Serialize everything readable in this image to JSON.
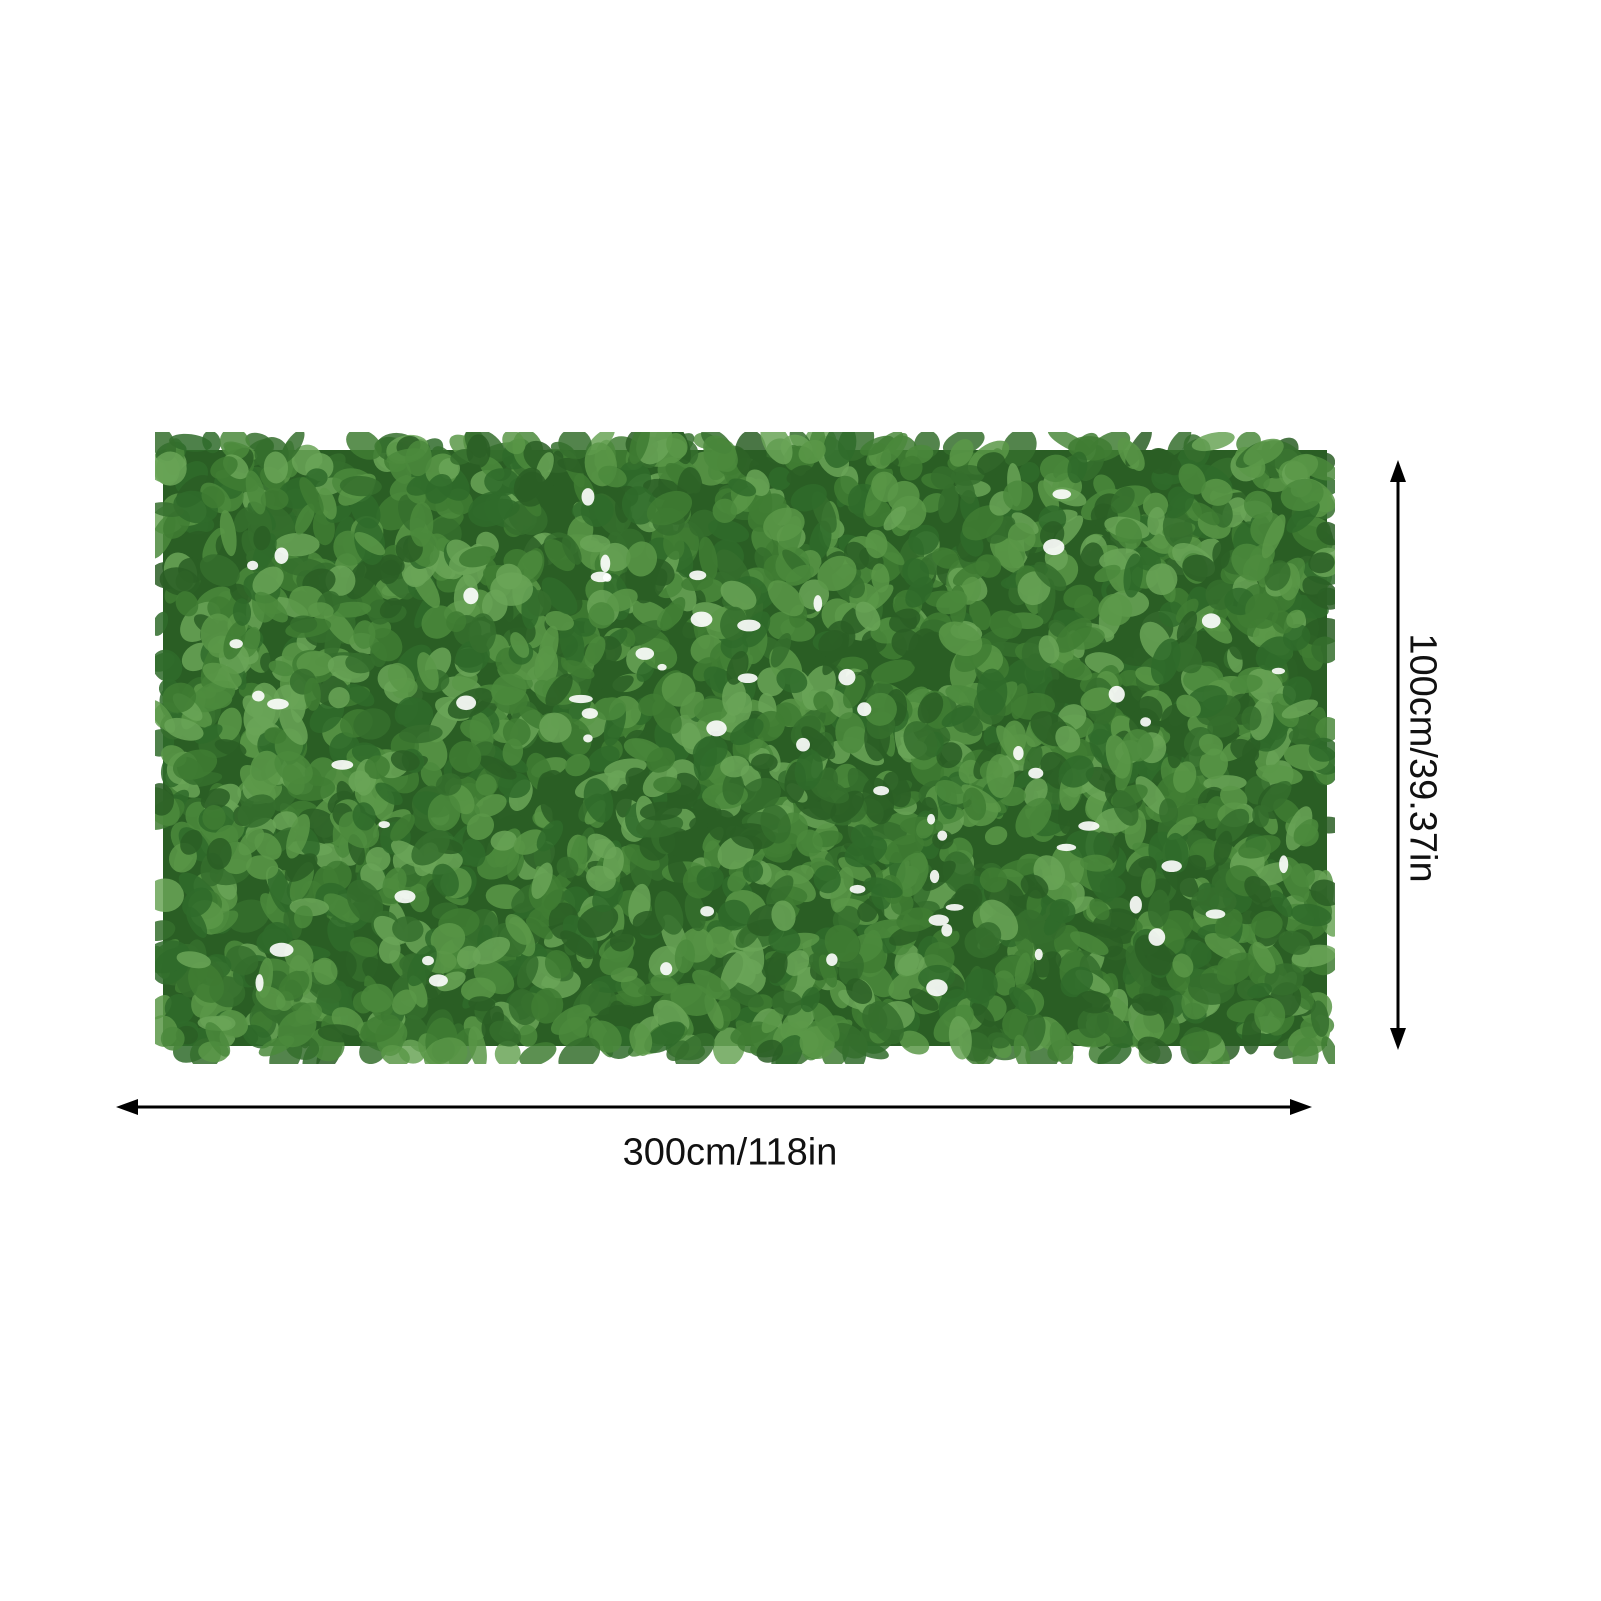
{
  "product": {
    "name_icon": "artificial-ivy-fence-panel",
    "leaf_color": "#3f7d33",
    "leaf_dark_color": "#2a5e24"
  },
  "dimensions": {
    "width_label": "300cm/118in",
    "height_label": "100cm/39.37in"
  }
}
